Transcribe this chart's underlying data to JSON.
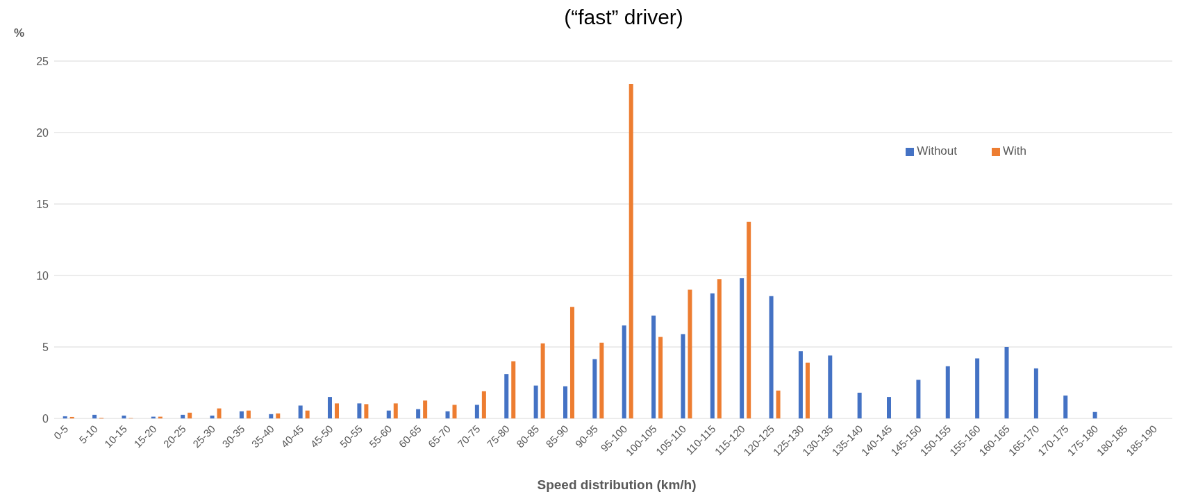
{
  "chart_data": {
    "type": "bar",
    "title": "(“fast” driver)",
    "ylabel": "%",
    "xlabel": "Speed distribution (km/h)",
    "categories": [
      "0-5",
      "5-10",
      "10-15",
      "15-20",
      "20-25",
      "25-30",
      "30-35",
      "35-40",
      "40-45",
      "45-50",
      "50-55",
      "55-60",
      "60-65",
      "65-70",
      "70-75",
      "75-80",
      "80-85",
      "85-90",
      "90-95",
      "95-100",
      "100-105",
      "105-110",
      "110-115",
      "115-120",
      "120-125",
      "125-130",
      "130-135",
      "135-140",
      "140-145",
      "145-150",
      "150-155",
      "155-160",
      "160-165",
      "165-170",
      "170-175",
      "175-180",
      "180-185",
      "185-190"
    ],
    "series": [
      {
        "name": "Without",
        "color": "#4472c4",
        "values": [
          0.15,
          0.25,
          0.2,
          0.12,
          0.25,
          0.2,
          0.5,
          0.3,
          0.9,
          1.5,
          1.05,
          0.55,
          0.65,
          0.5,
          0.95,
          3.1,
          2.3,
          2.25,
          4.15,
          6.5,
          7.2,
          5.9,
          8.75,
          9.8,
          8.55,
          4.7,
          4.4,
          1.8,
          1.5,
          2.7,
          3.65,
          4.2,
          5.0,
          3.5,
          1.6,
          0.45,
          0,
          0
        ]
      },
      {
        "name": "With",
        "color": "#ed7d31",
        "values": [
          0.1,
          0.05,
          0.03,
          0.12,
          0.4,
          0.7,
          0.55,
          0.35,
          0.55,
          1.05,
          1.0,
          1.05,
          1.25,
          0.95,
          1.9,
          4.0,
          5.25,
          7.8,
          5.3,
          23.4,
          5.7,
          9.0,
          9.75,
          13.75,
          1.95,
          3.9,
          0,
          0,
          0,
          0,
          0,
          0,
          0,
          0,
          0,
          0,
          0,
          0
        ]
      }
    ],
    "ylim": [
      0,
      25
    ],
    "yticks": [
      0,
      5,
      10,
      15,
      20,
      25
    ],
    "grid": "y",
    "legend": "top right"
  }
}
